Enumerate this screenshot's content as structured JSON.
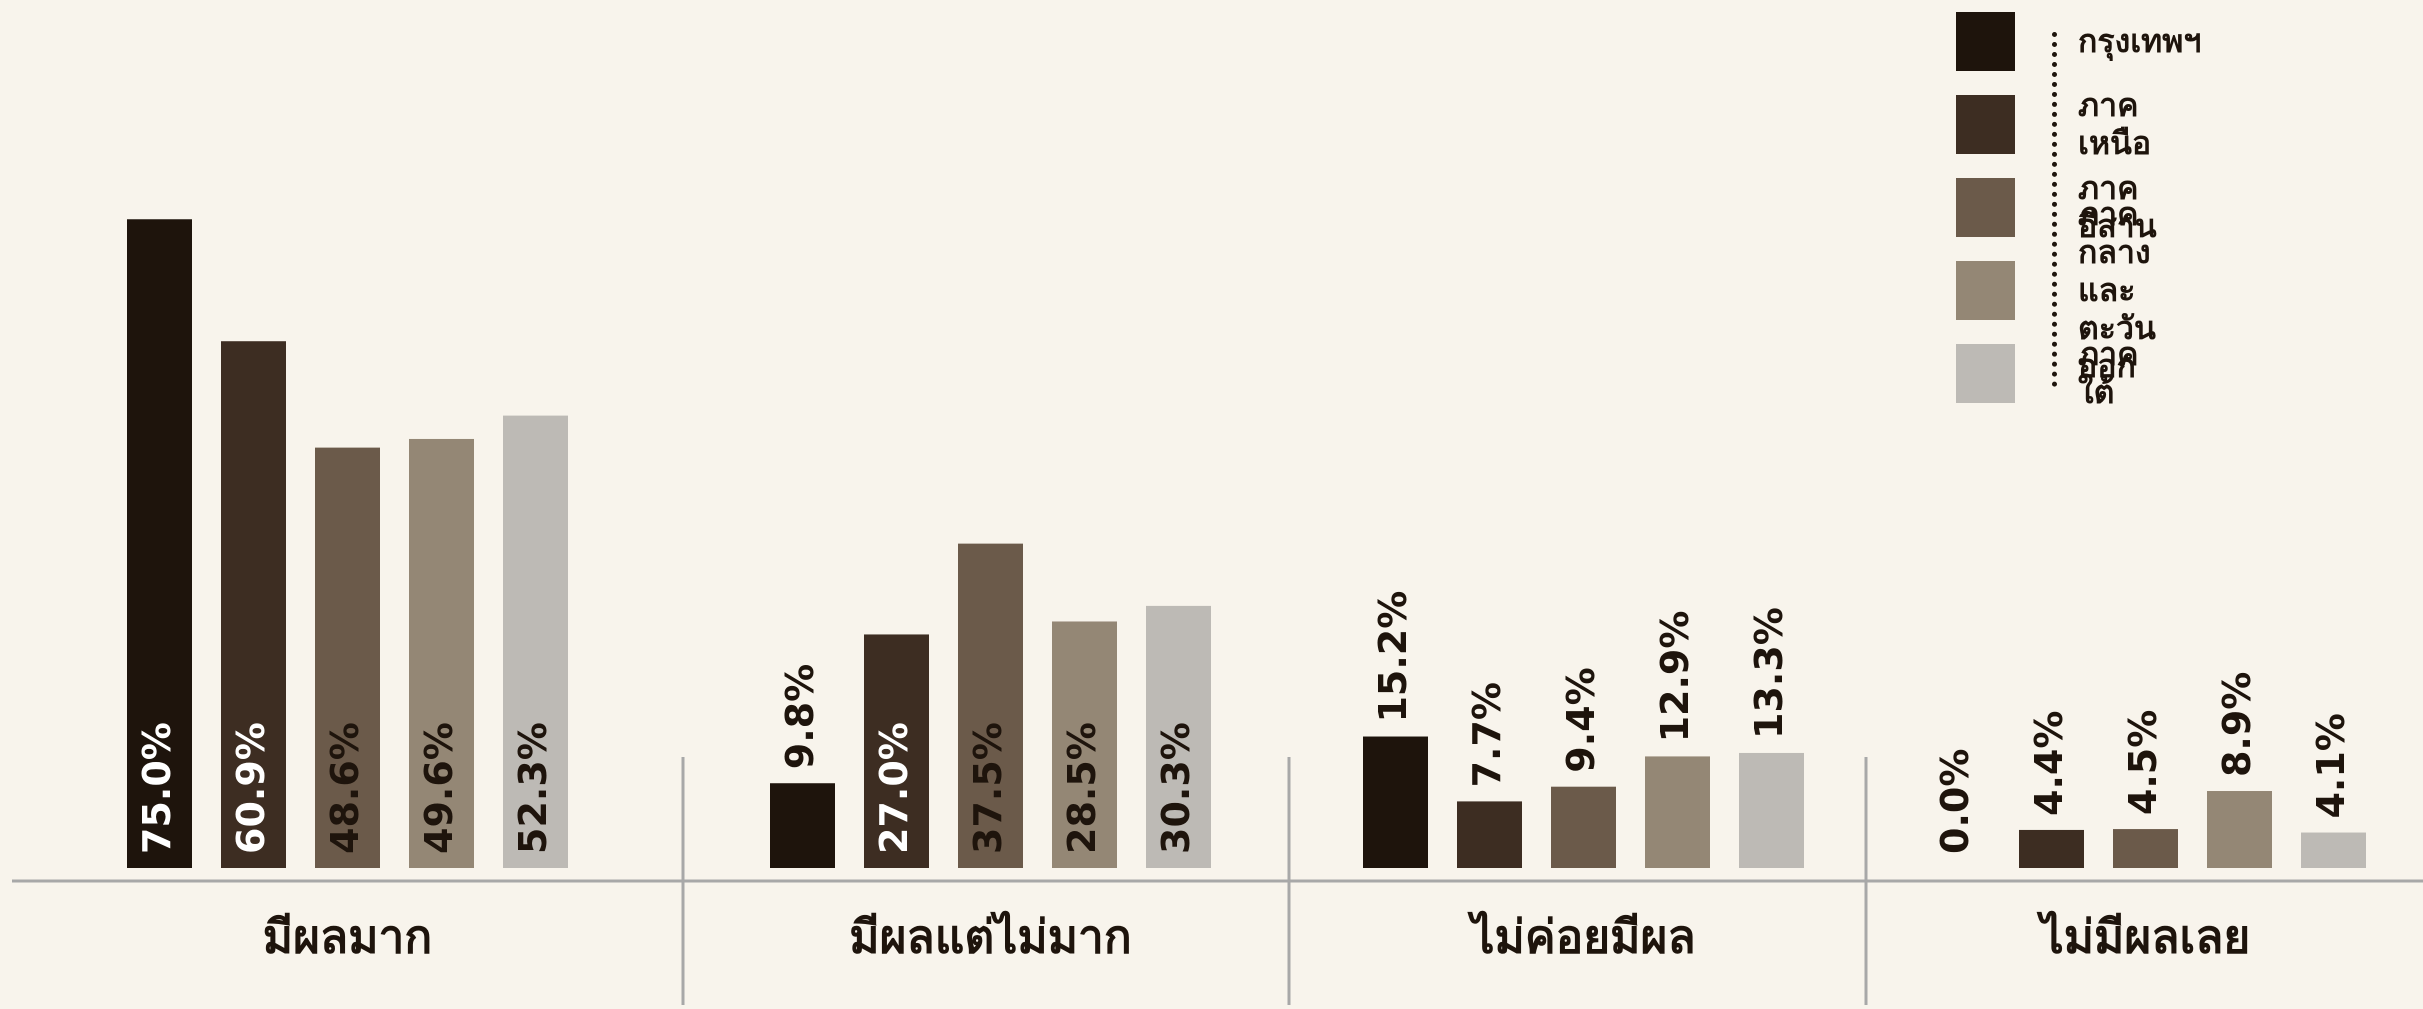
{
  "chart_data": {
    "type": "bar",
    "categories": [
      "มีผลมาก",
      "มีผลแต่ไม่มาก",
      "ไม่ค่อยมีผล",
      "ไม่มีผลเลย"
    ],
    "series": [
      {
        "name": "กรุงเทพฯ",
        "color": "#1e140c",
        "values": [
          75.0,
          9.8,
          15.2,
          0.0
        ],
        "value_labels": [
          "75.0%",
          "9.8%",
          "15.2%",
          "0.0%"
        ]
      },
      {
        "name": "ภาคเหนือ",
        "color": "#3d2d22",
        "values": [
          60.9,
          27.0,
          7.7,
          4.4
        ],
        "value_labels": [
          "60.9%",
          "27.0%",
          "7.7%",
          "4.4%"
        ]
      },
      {
        "name": "ภาคอีสาน",
        "color": "#6b5a4a",
        "values": [
          48.6,
          37.5,
          9.4,
          4.5
        ],
        "value_labels": [
          "48.6%",
          "37.5%",
          "9.4%",
          "4.5%"
        ]
      },
      {
        "name": "ภาคกลาง\nและตะวันออก",
        "color": "#948775",
        "values": [
          49.6,
          28.5,
          12.9,
          8.9
        ],
        "value_labels": [
          "49.6%",
          "28.5%",
          "12.9%",
          "8.9%"
        ]
      },
      {
        "name": "ภาคใต้",
        "color": "#bdbab5",
        "values": [
          52.3,
          30.3,
          13.3,
          4.1
        ],
        "value_labels": [
          "52.3%",
          "30.3%",
          "13.3%",
          "4.1%"
        ]
      }
    ],
    "legend": "top-right"
  }
}
